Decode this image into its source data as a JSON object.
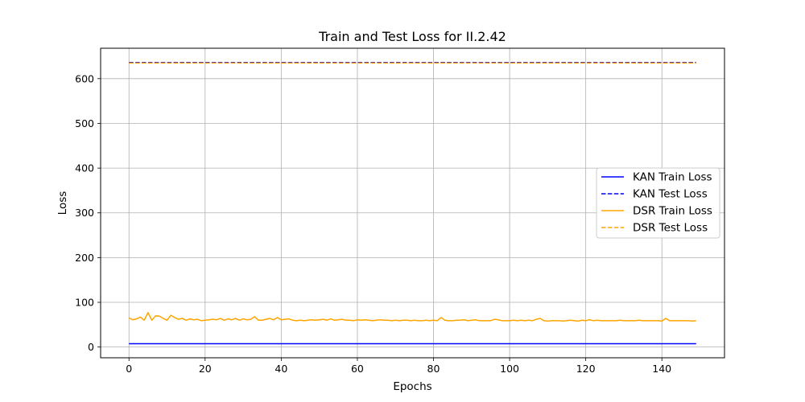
{
  "chart_data": {
    "type": "line",
    "title": "Train and Test Loss for II.2.42",
    "xlabel": "Epochs",
    "ylabel": "Loss",
    "xlim": [
      -7.45,
      156.45
    ],
    "ylim": [
      -24.0,
      668.0
    ],
    "xticks": [
      0,
      20,
      40,
      60,
      80,
      100,
      120,
      140
    ],
    "yticks": [
      0,
      100,
      200,
      300,
      400,
      500,
      600
    ],
    "grid": true,
    "legend_position": "center-right",
    "series": [
      {
        "name": "KAN Train Loss",
        "color": "#0000ff",
        "dash": "solid",
        "x_start": 0,
        "x_end": 149,
        "values": [
          7.5,
          7.5
        ]
      },
      {
        "name": "KAN Test Loss",
        "color": "#0000ff",
        "dash": "dashed",
        "x_start": 0,
        "x_end": 149,
        "values": [
          636,
          636
        ]
      },
      {
        "name": "DSR Train Loss",
        "color": "#ffa500",
        "dash": "solid",
        "x_start": 0,
        "x_end": 149,
        "values": [
          65,
          61,
          63,
          67,
          60,
          77,
          60,
          70,
          69,
          64,
          60,
          71,
          66,
          62,
          64,
          60,
          63,
          61,
          62,
          59,
          60,
          61,
          62,
          61,
          64,
          60,
          63,
          61,
          64,
          60,
          63,
          61,
          62,
          68,
          60,
          60,
          62,
          64,
          61,
          66,
          61,
          62,
          63,
          60,
          59,
          60,
          59,
          60,
          61,
          60,
          61,
          62,
          60,
          63,
          60,
          61,
          62,
          60,
          60,
          59,
          61,
          60,
          61,
          60,
          59,
          60,
          61,
          60,
          60,
          59,
          60,
          59,
          60,
          60,
          59,
          60,
          59,
          59,
          60,
          59,
          60,
          59,
          66,
          60,
          59,
          59,
          60,
          60,
          61,
          59,
          60,
          61,
          59,
          59,
          59,
          59,
          62,
          61,
          59,
          59,
          59,
          60,
          59,
          60,
          59,
          60,
          59,
          62,
          64,
          59,
          58,
          59,
          59,
          59,
          58,
          59,
          60,
          59,
          58,
          60,
          59,
          61,
          59,
          60,
          59,
          59,
          59,
          59,
          59,
          60,
          59,
          59,
          59,
          59,
          60,
          59,
          59,
          59,
          59,
          59,
          58,
          64,
          59,
          59,
          59,
          59,
          59,
          59,
          58,
          59
        ]
      },
      {
        "name": "DSR Test Loss",
        "color": "#ffa500",
        "dash": "dashed",
        "x_start": 0,
        "x_end": 149,
        "values": [
          635,
          635
        ]
      }
    ]
  }
}
